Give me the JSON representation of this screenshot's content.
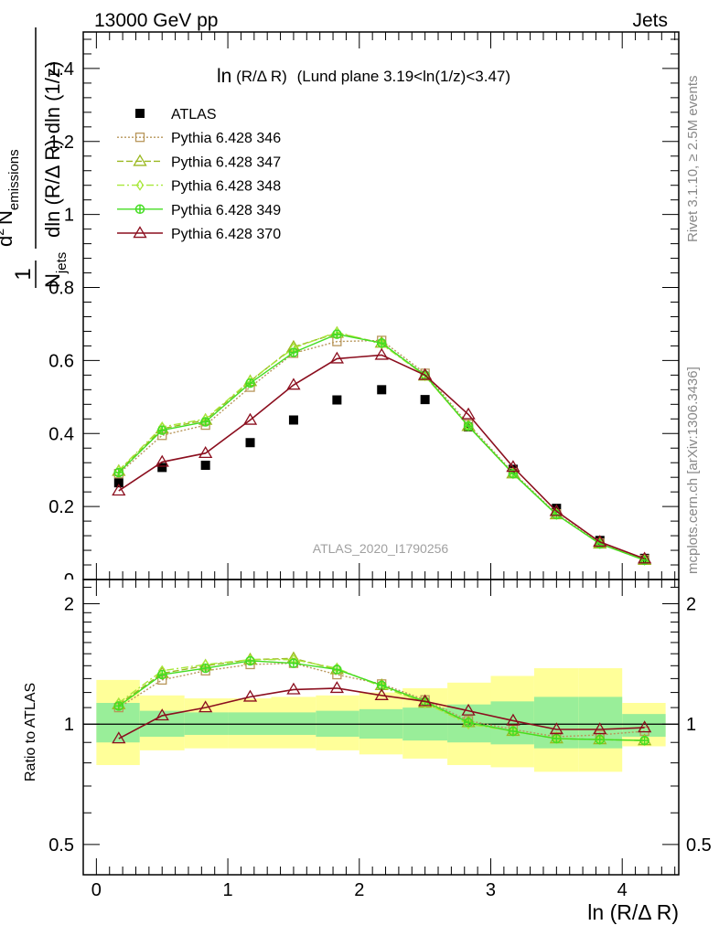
{
  "header": {
    "left": "13000 GeV pp",
    "right": "Jets"
  },
  "side": {
    "rivet": "Rivet 3.1.10, ≥ 2.5M events",
    "mcplots": "mcplots.cern.ch [arXiv:1306.3436]"
  },
  "plot_title": {
    "main": "ln",
    "paren": "(R/Δ R)",
    "tail": "(Lund plane 3.19<ln(1/z)<3.47)"
  },
  "watermark": "ATLAS_2020_I1790256",
  "ylabel_top": {
    "one": "1",
    "njets": "N",
    "njets_sub": "jets",
    "den_rest": "dln (R/Δ R) dln (1/z)",
    "d2": "d",
    "d2_sup": "2",
    "nem": "N",
    "nem_sub": "emissions"
  },
  "ylabel_ratio": "Ratio to ATLAS",
  "xlabel": "ln (R/Δ R)",
  "colors": {
    "atlas": "#000000",
    "p346": "#b8965a",
    "p347": "#9ab820",
    "p348": "#a8e83a",
    "p349": "#44dd22",
    "p370": "#8b0e1e",
    "band_yellow": "#ffff99",
    "band_green": "#99ee99"
  },
  "chart_data": [
    {
      "type": "scatter",
      "panel": "main",
      "xlim": [
        -0.1,
        4.43
      ],
      "ylim": [
        0,
        1.5
      ],
      "yticks": [
        "0.2",
        "0.4",
        "0.6",
        "0.8",
        "1",
        "1.2",
        "1.4"
      ],
      "ytick_values": [
        0.2,
        0.4,
        0.6,
        0.8,
        1.0,
        1.2,
        1.4
      ],
      "x": [
        0.17,
        0.5,
        0.83,
        1.17,
        1.5,
        1.83,
        2.17,
        2.5,
        2.83,
        3.17,
        3.5,
        3.83,
        4.17
      ],
      "series": [
        {
          "name": "ATLAS",
          "key": "atlas",
          "marker": "square-filled",
          "values": [
            0.265,
            0.307,
            0.313,
            0.375,
            0.437,
            0.492,
            0.52,
            0.493,
            0.418,
            0.302,
            0.195,
            0.107,
            0.058
          ]
        },
        {
          "name": "Pythia 6.428 346",
          "key": "p346",
          "marker": "square-open",
          "dash": "2,2",
          "values": [
            0.29,
            0.395,
            0.423,
            0.527,
            0.62,
            0.652,
            0.655,
            0.565,
            0.425,
            0.293,
            0.18,
            0.1,
            0.055
          ]
        },
        {
          "name": "Pythia 6.428 347",
          "key": "p347",
          "marker": "triangle-open",
          "dash": "7,3",
          "values": [
            0.297,
            0.413,
            0.437,
            0.543,
            0.637,
            0.675,
            0.648,
            0.558,
            0.42,
            0.29,
            0.178,
            0.098,
            0.053
          ]
        },
        {
          "name": "Pythia 6.428 348",
          "key": "p348",
          "marker": "diamond-open",
          "dash": "8,3,2,3",
          "values": [
            0.299,
            0.418,
            0.44,
            0.545,
            0.634,
            0.678,
            0.645,
            0.558,
            0.42,
            0.29,
            0.178,
            0.098,
            0.053
          ]
        },
        {
          "name": "Pythia 6.428 349",
          "key": "p349",
          "marker": "cross-circle",
          "dash": "",
          "values": [
            0.293,
            0.409,
            0.432,
            0.538,
            0.622,
            0.672,
            0.648,
            0.56,
            0.42,
            0.29,
            0.178,
            0.098,
            0.053
          ]
        },
        {
          "name": "Pythia 6.428 370",
          "key": "p370",
          "marker": "triangle-open",
          "dash": "",
          "values": [
            0.243,
            0.322,
            0.346,
            0.437,
            0.533,
            0.605,
            0.615,
            0.56,
            0.452,
            0.308,
            0.187,
            0.103,
            0.057
          ]
        }
      ]
    },
    {
      "type": "line",
      "panel": "ratio",
      "xlim": [
        -0.1,
        4.43
      ],
      "ylim": [
        0.42,
        2.3
      ],
      "yticks": [
        "0.5",
        "1",
        "2"
      ],
      "ytick_values": [
        0.5,
        1.0,
        2.0
      ],
      "xticks": [
        "0",
        "1",
        "2",
        "3",
        "4"
      ],
      "xtick_values": [
        0,
        1,
        2,
        3,
        4
      ],
      "bins": [
        [
          0.0,
          0.33
        ],
        [
          0.33,
          0.67
        ],
        [
          0.67,
          1.0
        ],
        [
          1.0,
          1.33
        ],
        [
          1.33,
          1.67
        ],
        [
          1.67,
          2.0
        ],
        [
          2.0,
          2.33
        ],
        [
          2.33,
          2.67
        ],
        [
          2.67,
          3.0
        ],
        [
          3.0,
          3.33
        ],
        [
          3.33,
          3.67
        ],
        [
          3.67,
          4.0
        ],
        [
          4.0,
          4.33
        ]
      ],
      "band_yellow": [
        [
          0.79,
          1.29
        ],
        [
          0.86,
          1.18
        ],
        [
          0.87,
          1.16
        ],
        [
          0.87,
          1.16
        ],
        [
          0.87,
          1.17
        ],
        [
          0.86,
          1.18
        ],
        [
          0.84,
          1.2
        ],
        [
          0.82,
          1.23
        ],
        [
          0.79,
          1.27
        ],
        [
          0.78,
          1.32
        ],
        [
          0.76,
          1.38
        ],
        [
          0.76,
          1.38
        ],
        [
          0.88,
          1.13
        ]
      ],
      "band_green": [
        [
          0.9,
          1.13
        ],
        [
          0.93,
          1.08
        ],
        [
          0.94,
          1.07
        ],
        [
          0.94,
          1.07
        ],
        [
          0.94,
          1.07
        ],
        [
          0.93,
          1.08
        ],
        [
          0.92,
          1.09
        ],
        [
          0.91,
          1.1
        ],
        [
          0.9,
          1.12
        ],
        [
          0.89,
          1.14
        ],
        [
          0.87,
          1.17
        ],
        [
          0.87,
          1.17
        ],
        [
          0.93,
          1.06
        ]
      ],
      "x": [
        0.17,
        0.5,
        0.83,
        1.17,
        1.5,
        1.83,
        2.17,
        2.5,
        2.83,
        3.17,
        3.5,
        3.83,
        4.17
      ],
      "series": [
        {
          "name": "Pythia 6.428 346",
          "key": "p346",
          "values": [
            1.1,
            1.29,
            1.36,
            1.41,
            1.42,
            1.33,
            1.26,
            1.15,
            1.02,
            0.97,
            0.93,
            0.94,
            0.96
          ]
        },
        {
          "name": "Pythia 6.428 347",
          "key": "p347",
          "values": [
            1.12,
            1.34,
            1.4,
            1.45,
            1.46,
            1.37,
            1.25,
            1.13,
            1.01,
            0.96,
            0.92,
            0.915,
            0.91
          ]
        },
        {
          "name": "Pythia 6.428 348",
          "key": "p348",
          "values": [
            1.13,
            1.36,
            1.41,
            1.45,
            1.45,
            1.38,
            1.24,
            1.13,
            1.0,
            0.96,
            0.92,
            0.915,
            0.91
          ]
        },
        {
          "name": "Pythia 6.428 349",
          "key": "p349",
          "values": [
            1.11,
            1.33,
            1.38,
            1.44,
            1.42,
            1.37,
            1.25,
            1.14,
            1.01,
            0.96,
            0.92,
            0.915,
            0.91
          ]
        },
        {
          "name": "Pythia 6.428 370",
          "key": "p370",
          "values": [
            0.92,
            1.05,
            1.1,
            1.17,
            1.22,
            1.23,
            1.18,
            1.14,
            1.08,
            1.02,
            0.97,
            0.97,
            0.98
          ]
        }
      ]
    }
  ]
}
